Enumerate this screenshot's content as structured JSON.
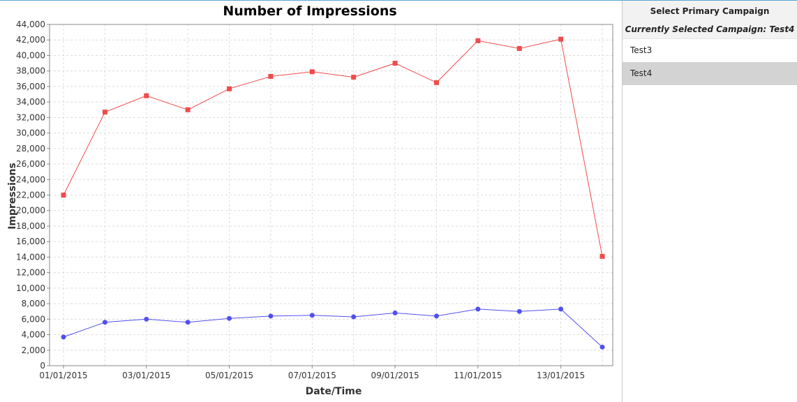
{
  "chart_data": {
    "type": "line",
    "title": "Number of Impressions",
    "xlabel": "Date/Time",
    "ylabel": "Impressions",
    "x": [
      "01/01/2015",
      "02/01/2015",
      "03/01/2015",
      "04/01/2015",
      "05/01/2015",
      "06/01/2015",
      "07/01/2015",
      "08/01/2015",
      "09/01/2015",
      "10/01/2015",
      "11/01/2015",
      "12/01/2015",
      "13/01/2015",
      "14/01/2015"
    ],
    "x_tick_labels": [
      "01/01/2015",
      "03/01/2015",
      "05/01/2015",
      "07/01/2015",
      "09/01/2015",
      "11/01/2015",
      "13/01/2015"
    ],
    "ylim": [
      0,
      44000
    ],
    "y_ticks": [
      0,
      2000,
      4000,
      6000,
      8000,
      10000,
      12000,
      14000,
      16000,
      18000,
      20000,
      22000,
      24000,
      26000,
      28000,
      30000,
      32000,
      34000,
      36000,
      38000,
      40000,
      42000,
      44000
    ],
    "y_tick_labels": [
      "0",
      "2,000",
      "4,000",
      "6,000",
      "8,000",
      "10,000",
      "12,000",
      "14,000",
      "16,000",
      "18,000",
      "20,000",
      "22,000",
      "24,000",
      "26,000",
      "28,000",
      "30,000",
      "32,000",
      "34,000",
      "36,000",
      "38,000",
      "40,000",
      "42,000",
      "44,000"
    ],
    "grid": true,
    "series": [
      {
        "color": "#ef4b4b",
        "marker": "square",
        "values": [
          22000,
          32700,
          34800,
          33000,
          35700,
          37300,
          37900,
          37200,
          39000,
          36500,
          41900,
          40900,
          42100,
          14100
        ]
      },
      {
        "color": "#5050ef",
        "marker": "circle",
        "values": [
          3700,
          5600,
          6000,
          5600,
          6100,
          6400,
          6500,
          6300,
          6800,
          6400,
          7300,
          7000,
          7300,
          2400
        ]
      }
    ]
  },
  "side_panel": {
    "title": "Select Primary Campaign",
    "subtitle": "Currently Selected Campaign: Test4",
    "campaigns": [
      {
        "label": "Test3",
        "selected": false
      },
      {
        "label": "Test4",
        "selected": true
      }
    ]
  }
}
